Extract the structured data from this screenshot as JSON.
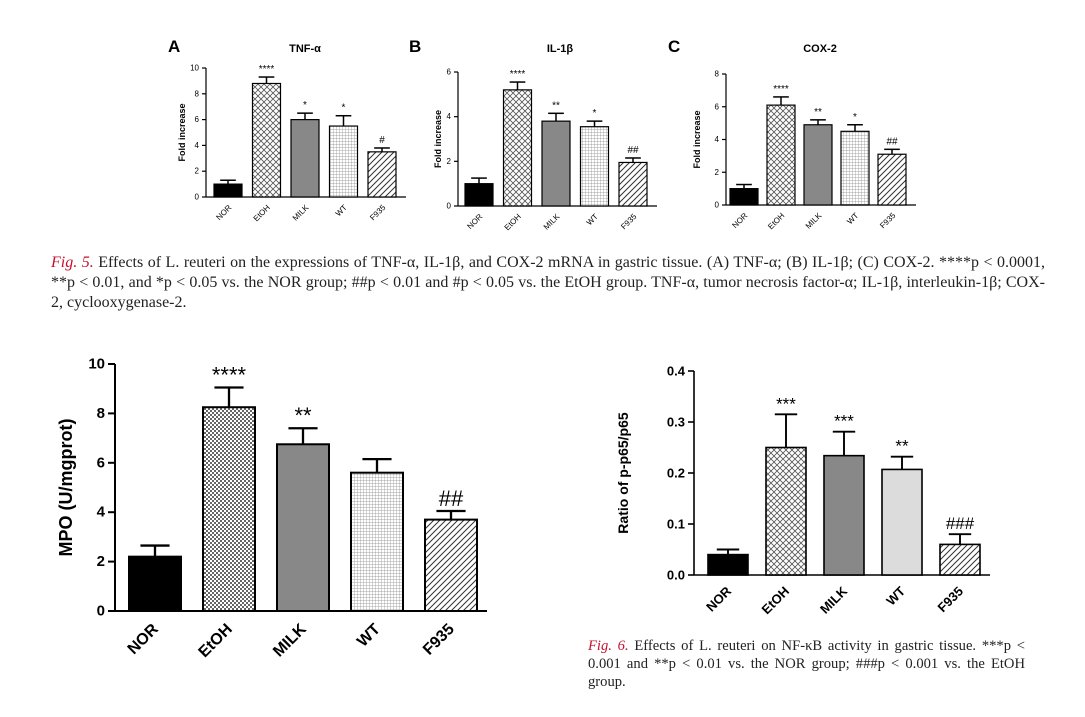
{
  "figure5": {
    "caption": {
      "label": "Fig. 5.",
      "text": " Effects of L. reuteri on the expressions of TNF-α, IL-1β, and COX-2 mRNA in gastric tissue. (A) TNF-α; (B) IL-1β; (C) COX-2. ****p < 0.0001, **p < 0.01, and *p < 0.05 vs. the NOR group; ##p < 0.01 and #p < 0.05 vs. the EtOH group. TNF-α, tumor necrosis factor-α; IL-1β, interleukin-1β; COX-2, cyclooxygenase-2."
    }
  },
  "figure6": {
    "caption": {
      "label": "Fig. 6.",
      "text": " Effects of L. reuteri on NF-κB activity in gastric tissue. ***p < 0.001 and **p < 0.01 vs. the NOR group; ###p < 0.001 vs. the EtOH group."
    }
  },
  "chart_data": [
    {
      "id": "panel-a",
      "type": "bar",
      "panel": "A",
      "title": "TNF-α",
      "ylabel": "Fold increase",
      "xlabel": "",
      "categories": [
        "NOR",
        "EtOH",
        "MILK",
        "WT",
        "F935"
      ],
      "values": [
        1.0,
        8.8,
        6.0,
        5.5,
        3.5
      ],
      "errors": [
        0.3,
        0.5,
        0.5,
        0.8,
        0.3
      ],
      "annotations": [
        "",
        "****",
        "*",
        "*",
        "#"
      ],
      "ylim": [
        0,
        10
      ],
      "yticks": [
        0,
        2,
        4,
        6,
        8,
        10
      ],
      "patterns": [
        "solid-black",
        "crosshatch",
        "solid-gray",
        "grid",
        "diagonal"
      ]
    },
    {
      "id": "panel-b",
      "type": "bar",
      "panel": "B",
      "title": "IL-1β",
      "ylabel": "Fold increase",
      "xlabel": "",
      "categories": [
        "NOR",
        "EtOH",
        "MILK",
        "WT",
        "F935"
      ],
      "values": [
        1.0,
        5.2,
        3.8,
        3.55,
        1.95
      ],
      "errors": [
        0.25,
        0.35,
        0.35,
        0.25,
        0.2
      ],
      "annotations": [
        "",
        "****",
        "**",
        "*",
        "##"
      ],
      "ylim": [
        0,
        6
      ],
      "yticks": [
        0,
        2,
        4,
        6
      ],
      "patterns": [
        "solid-black",
        "crosshatch",
        "solid-gray",
        "grid",
        "diagonal"
      ]
    },
    {
      "id": "panel-c",
      "type": "bar",
      "panel": "C",
      "title": "COX-2",
      "ylabel": "Fold increase",
      "xlabel": "",
      "categories": [
        "NOR",
        "EtOH",
        "MILK",
        "WT",
        "F935"
      ],
      "values": [
        1.0,
        6.1,
        4.9,
        4.5,
        3.1
      ],
      "errors": [
        0.25,
        0.5,
        0.3,
        0.4,
        0.3
      ],
      "annotations": [
        "",
        "****",
        "**",
        "*",
        "##"
      ],
      "ylim": [
        0,
        8
      ],
      "yticks": [
        0,
        2,
        4,
        6,
        8
      ],
      "patterns": [
        "solid-black",
        "crosshatch",
        "solid-gray",
        "grid",
        "diagonal"
      ]
    },
    {
      "id": "mpo",
      "type": "bar",
      "title": "",
      "ylabel": "MPO (U/mgprot)",
      "xlabel": "",
      "categories": [
        "NOR",
        "EtOH",
        "MILK",
        "WT",
        "F935"
      ],
      "values": [
        2.2,
        8.25,
        6.75,
        5.6,
        3.7
      ],
      "errors": [
        0.45,
        0.8,
        0.65,
        0.55,
        0.35
      ],
      "annotations": [
        "",
        "****",
        "**",
        "",
        "##"
      ],
      "ylim": [
        0,
        10
      ],
      "yticks": [
        0,
        2,
        4,
        6,
        8,
        10
      ],
      "patterns": [
        "solid-black",
        "checker",
        "solid-gray",
        "grid",
        "diagonal"
      ]
    },
    {
      "id": "nfkb",
      "type": "bar",
      "title": "",
      "ylabel": "Ratio of p-p65/p65",
      "xlabel": "",
      "categories": [
        "NOR",
        "EtOH",
        "MILK",
        "WT",
        "F935"
      ],
      "values": [
        0.04,
        0.25,
        0.234,
        0.207,
        0.06
      ],
      "errors": [
        0.01,
        0.065,
        0.047,
        0.025,
        0.02
      ],
      "annotations": [
        "",
        "***",
        "***",
        "**",
        "###"
      ],
      "ylim": [
        0,
        0.4
      ],
      "yticks": [
        "0.0",
        "0.1",
        "0.2",
        "0.3",
        "0.4"
      ],
      "patterns": [
        "solid-black",
        "crosshatch",
        "solid-gray",
        "light-gray",
        "diagonal"
      ]
    }
  ]
}
